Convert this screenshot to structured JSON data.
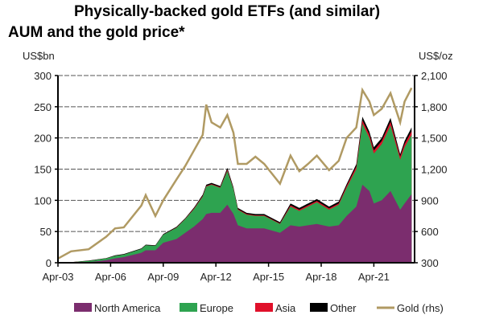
{
  "chart_data": {
    "type": "area",
    "title": "Physically-backed gold ETFs (and similar)",
    "subtitle": "AUM and the gold price*",
    "ylabel": "US$bn",
    "ylabel_right": "US$/oz",
    "ylim": [
      0,
      300
    ],
    "ylim_right": [
      300,
      2100
    ],
    "yticks": [
      "0",
      "50",
      "100",
      "150",
      "200",
      "250",
      "300"
    ],
    "yticks_right": [
      "300",
      "600",
      "900",
      "1,200",
      "1,500",
      "1,800",
      "2,100"
    ],
    "xticks": [
      "Apr-03",
      "Apr-06",
      "Apr-09",
      "Apr-12",
      "Apr-15",
      "Apr-18",
      "Apr-21"
    ],
    "grid": true,
    "legend": "bottom",
    "stacked": true,
    "x": [
      2003.25,
      2004.0,
      2005.0,
      2006.0,
      2006.5,
      2007.0,
      2008.0,
      2008.25,
      2008.8,
      2009.25,
      2010.0,
      2010.5,
      2011.0,
      2011.5,
      2011.7,
      2012.0,
      2012.5,
      2012.9,
      2013.25,
      2013.5,
      2014.0,
      2014.5,
      2015.0,
      2015.9,
      2016.5,
      2017.0,
      2017.5,
      2018.0,
      2018.7,
      2019.25,
      2019.7,
      2020.25,
      2020.6,
      2021.0,
      2021.25,
      2021.7,
      2022.2,
      2022.75,
      2023.0,
      2023.4
    ],
    "series": [
      {
        "name": "North America",
        "color": "#7B2D6E",
        "values": [
          0,
          0,
          1,
          4,
          7,
          9,
          16,
          20,
          20,
          32,
          38,
          48,
          58,
          70,
          78,
          80,
          80,
          93,
          78,
          60,
          55,
          55,
          55,
          48,
          60,
          58,
          60,
          62,
          58,
          60,
          75,
          90,
          125,
          115,
          95,
          100,
          115,
          85,
          95,
          110
        ]
      },
      {
        "name": "Europe",
        "color": "#2EA350",
        "values": [
          0,
          1,
          2,
          3,
          4,
          4,
          6,
          8,
          7,
          13,
          18,
          22,
          28,
          36,
          44,
          45,
          40,
          54,
          40,
          25,
          22,
          20,
          20,
          14,
          30,
          25,
          30,
          35,
          27,
          33,
          45,
          60,
          98,
          85,
          80,
          90,
          105,
          80,
          90,
          95
        ]
      },
      {
        "name": "Asia",
        "color": "#E0102A",
        "values": [
          0,
          0,
          0,
          0,
          0,
          0,
          0,
          0,
          0,
          0,
          0.5,
          0.5,
          1,
          1,
          1,
          1,
          1,
          2,
          1,
          1,
          1,
          1,
          1,
          1,
          2,
          2,
          2,
          2,
          2,
          2,
          3,
          4,
          5,
          5,
          5,
          5,
          6,
          5,
          5,
          6
        ]
      },
      {
        "name": "Other",
        "color": "#000000",
        "values": [
          0,
          0,
          0.5,
          0.5,
          1,
          1,
          1,
          1,
          1,
          1,
          1,
          1,
          1.5,
          2,
          2,
          2,
          2,
          3,
          2,
          2,
          2,
          2,
          2,
          2,
          3,
          3,
          3,
          3,
          3,
          3,
          3,
          4,
          6,
          5,
          5,
          5,
          6,
          4,
          5,
          6
        ]
      },
      {
        "name": "Gold (rhs)",
        "color": "#B09A63",
        "axis": "right",
        "values": [
          340,
          410,
          430,
          550,
          630,
          640,
          850,
          950,
          750,
          900,
          1100,
          1230,
          1380,
          1530,
          1820,
          1650,
          1600,
          1720,
          1550,
          1250,
          1250,
          1320,
          1250,
          1060,
          1330,
          1180,
          1250,
          1330,
          1190,
          1280,
          1500,
          1600,
          1960,
          1850,
          1720,
          1780,
          1930,
          1650,
          1850,
          1980
        ]
      }
    ]
  }
}
